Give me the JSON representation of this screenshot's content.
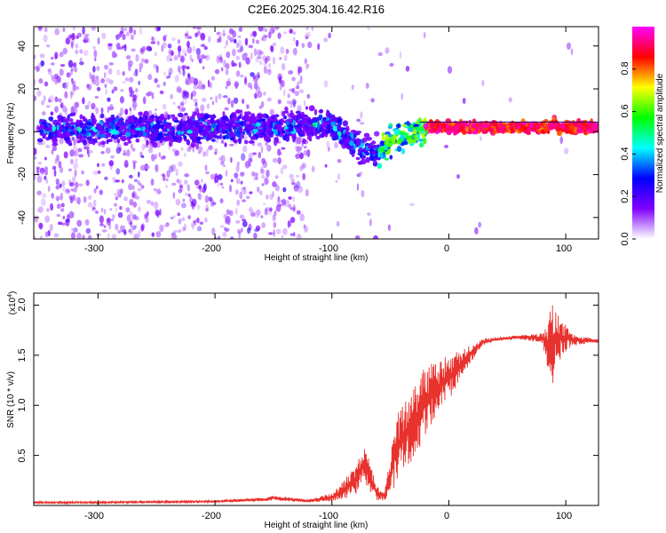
{
  "title": "C2E6.2025.304.16.42.R16",
  "chart_data": [
    {
      "type": "heatmap",
      "name": "spectrogram",
      "xlabel": "Height of straight line (km)",
      "ylabel": "Frequency (Hz)",
      "xlim": [
        -355,
        128
      ],
      "ylim": [
        -50,
        49
      ],
      "xticks": [
        -300,
        -200,
        -100,
        0,
        100
      ],
      "xtick_labels": [
        "-300",
        "-200",
        "-100",
        "0",
        "100"
      ],
      "yticks": [
        -40,
        -20,
        0,
        20,
        40
      ],
      "ytick_labels": [
        "-40",
        "-20",
        "0",
        "20",
        "40"
      ],
      "ridge": {
        "x": [
          -350,
          -300,
          -250,
          -200,
          -150,
          -120,
          -100,
          -90,
          -80,
          -70,
          -60,
          -55,
          -50,
          -40,
          -30,
          -20,
          -10,
          0,
          20,
          50,
          85,
          90,
          95,
          100,
          128
        ],
        "y": [
          1,
          1.5,
          1.5,
          1.5,
          2,
          3,
          3.5,
          -2,
          -6,
          -9,
          -10,
          -8,
          -5,
          -2,
          0,
          2,
          2.5,
          2,
          2,
          2,
          2,
          4,
          1,
          2,
          2
        ]
      },
      "colorbar": {
        "label": "Normalized spectral amplitude",
        "range": [
          0,
          1
        ],
        "ticks": [
          0.0,
          0.2,
          0.4,
          0.6,
          0.8
        ],
        "tick_labels": [
          "0.0",
          "0.2",
          "0.4",
          "0.6",
          "0.8"
        ],
        "colors": [
          "#ffffff",
          "#8000ff",
          "#0000ff",
          "#00ffff",
          "#00ff00",
          "#ffff00",
          "#ff0000",
          "#ff00ff"
        ]
      }
    },
    {
      "type": "line",
      "name": "snr",
      "xlabel": "Height of straight line (km)",
      "ylabel": "SNR (10 * v/v)",
      "scale_note": "(x10",
      "scale_exp": "4",
      "scale_close": ")",
      "xlim": [
        -355,
        128
      ],
      "ylim": [
        0,
        2.12
      ],
      "xticks": [
        -300,
        -200,
        -100,
        0,
        100
      ],
      "xtick_labels": [
        "-300",
        "-200",
        "-100",
        "0",
        "100"
      ],
      "yticks": [
        0.5,
        1.0,
        1.5,
        2.0
      ],
      "ytick_labels": [
        "0.5",
        "1.0",
        "1.5",
        "2.0"
      ],
      "line_color": "#e8322d",
      "envelope": {
        "x": [
          -355,
          -300,
          -200,
          -160,
          -150,
          -120,
          -100,
          -90,
          -80,
          -75,
          -72,
          -68,
          -62,
          -55,
          -50,
          -45,
          -40,
          -30,
          -20,
          -10,
          0,
          10,
          20,
          30,
          40,
          60,
          80,
          85,
          88,
          92,
          98,
          104,
          110,
          120,
          128
        ],
        "high": [
          0.04,
          0.04,
          0.05,
          0.08,
          0.1,
          0.06,
          0.12,
          0.25,
          0.4,
          0.55,
          0.65,
          0.45,
          0.2,
          0.15,
          0.5,
          0.9,
          1.0,
          1.2,
          1.4,
          1.45,
          1.5,
          1.55,
          1.62,
          1.67,
          1.68,
          1.7,
          1.72,
          1.85,
          2.1,
          1.95,
          1.85,
          1.75,
          1.7,
          1.68,
          1.66
        ],
        "low": [
          0.02,
          0.02,
          0.03,
          0.04,
          0.05,
          0.03,
          0.04,
          0.06,
          0.1,
          0.2,
          0.25,
          0.12,
          0.05,
          0.05,
          0.1,
          0.2,
          0.3,
          0.45,
          0.7,
          0.9,
          1.05,
          1.25,
          1.45,
          1.6,
          1.64,
          1.66,
          1.62,
          1.35,
          1.15,
          1.4,
          1.5,
          1.58,
          1.6,
          1.62,
          1.62
        ]
      }
    }
  ]
}
